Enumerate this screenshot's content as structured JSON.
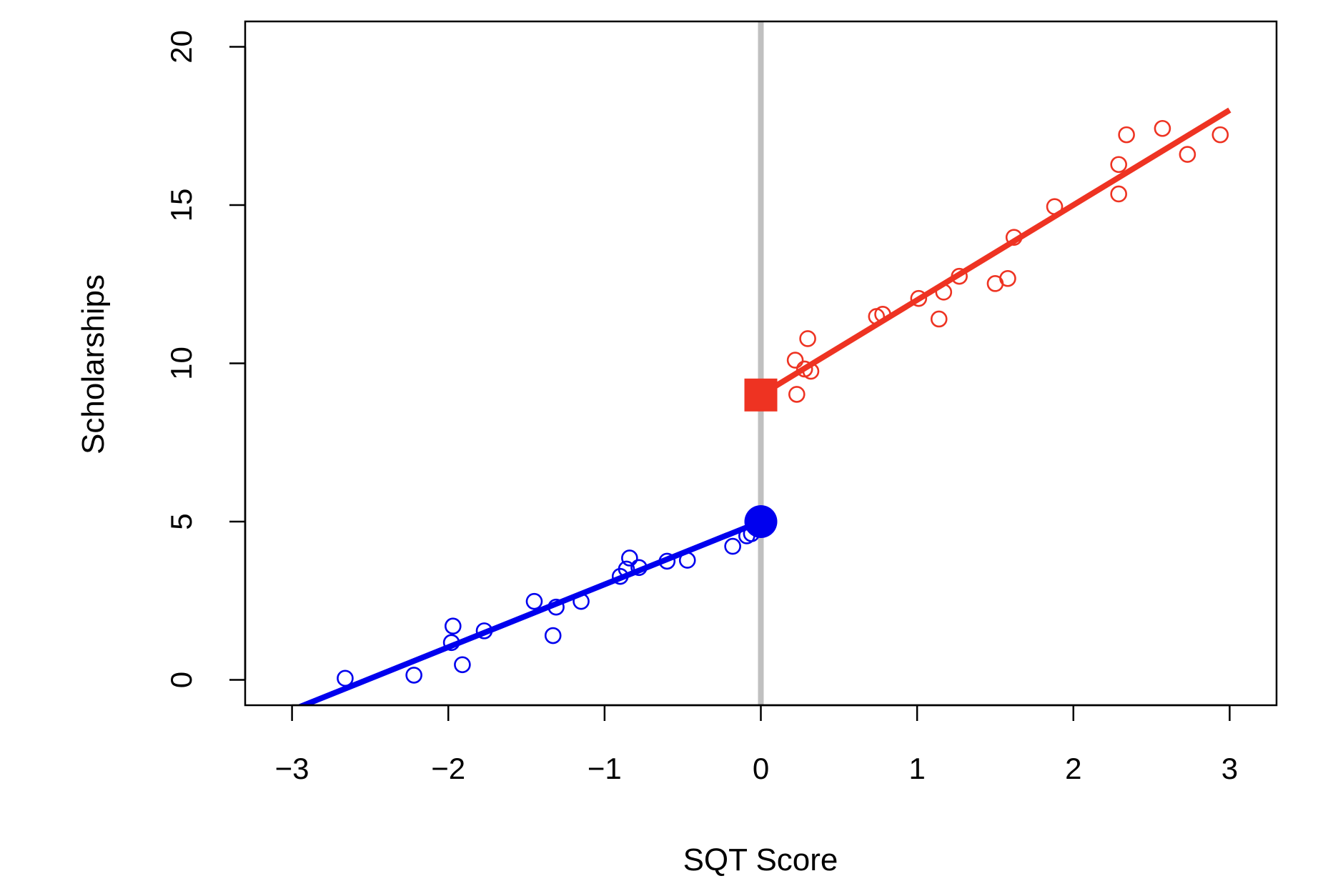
{
  "chart_data": {
    "type": "scatter",
    "title": "",
    "xlabel": "SQT Score",
    "ylabel": "Scholarships",
    "xlim": [
      -3.3,
      3.3
    ],
    "ylim": [
      -0.8,
      20.8
    ],
    "x_ticks": [
      {
        "value": -3,
        "label": "−3"
      },
      {
        "value": -2,
        "label": "−2"
      },
      {
        "value": -1,
        "label": "−1"
      },
      {
        "value": 0,
        "label": "0"
      },
      {
        "value": 1,
        "label": "1"
      },
      {
        "value": 2,
        "label": "2"
      },
      {
        "value": 3,
        "label": "3"
      }
    ],
    "y_ticks": [
      {
        "value": 0,
        "label": "0"
      },
      {
        "value": 5,
        "label": "5"
      },
      {
        "value": 10,
        "label": "10"
      },
      {
        "value": 15,
        "label": "15"
      },
      {
        "value": 20,
        "label": "20"
      }
    ],
    "grid": false,
    "cutoff": {
      "x": 0,
      "color": "#c0c0c0"
    },
    "series": [
      {
        "color": "#0000ee",
        "points": [
          [
            -2.66,
            0.05
          ],
          [
            -2.22,
            0.15
          ],
          [
            -1.97,
            1.7
          ],
          [
            -1.98,
            1.18
          ],
          [
            -1.91,
            0.48
          ],
          [
            -1.77,
            1.55
          ],
          [
            -1.45,
            2.48
          ],
          [
            -1.33,
            1.4
          ],
          [
            -1.31,
            2.3
          ],
          [
            -1.15,
            2.48
          ],
          [
            -0.9,
            3.27
          ],
          [
            -0.86,
            3.5
          ],
          [
            -0.84,
            3.85
          ],
          [
            -0.78,
            3.55
          ],
          [
            -0.6,
            3.75
          ],
          [
            -0.47,
            3.78
          ],
          [
            -0.18,
            4.22
          ],
          [
            -0.09,
            4.55
          ],
          [
            -0.06,
            4.62
          ]
        ],
        "fit": {
          "x": [
            -2.95,
            0
          ],
          "y": [
            -0.85,
            5.0
          ]
        },
        "boundary": {
          "x": 0,
          "y": 5.0,
          "shape": "circle"
        }
      },
      {
        "color": "#ee3322",
        "points": [
          [
            0.22,
            10.1
          ],
          [
            0.23,
            9.02
          ],
          [
            0.28,
            9.82
          ],
          [
            0.3,
            10.78
          ],
          [
            0.32,
            9.75
          ],
          [
            0.74,
            11.48
          ],
          [
            0.78,
            11.55
          ],
          [
            1.01,
            12.05
          ],
          [
            1.14,
            11.4
          ],
          [
            1.17,
            12.25
          ],
          [
            1.27,
            12.75
          ],
          [
            1.5,
            12.52
          ],
          [
            1.58,
            12.68
          ],
          [
            1.62,
            13.98
          ],
          [
            1.88,
            14.95
          ],
          [
            2.29,
            16.28
          ],
          [
            2.29,
            15.35
          ],
          [
            2.34,
            17.22
          ],
          [
            2.57,
            17.42
          ],
          [
            2.73,
            16.6
          ],
          [
            2.94,
            17.22
          ]
        ],
        "fit": {
          "x": [
            0,
            3.0
          ],
          "y": [
            9.0,
            18.0
          ]
        },
        "boundary": {
          "x": 0,
          "y": 9.0,
          "shape": "square"
        }
      }
    ]
  }
}
